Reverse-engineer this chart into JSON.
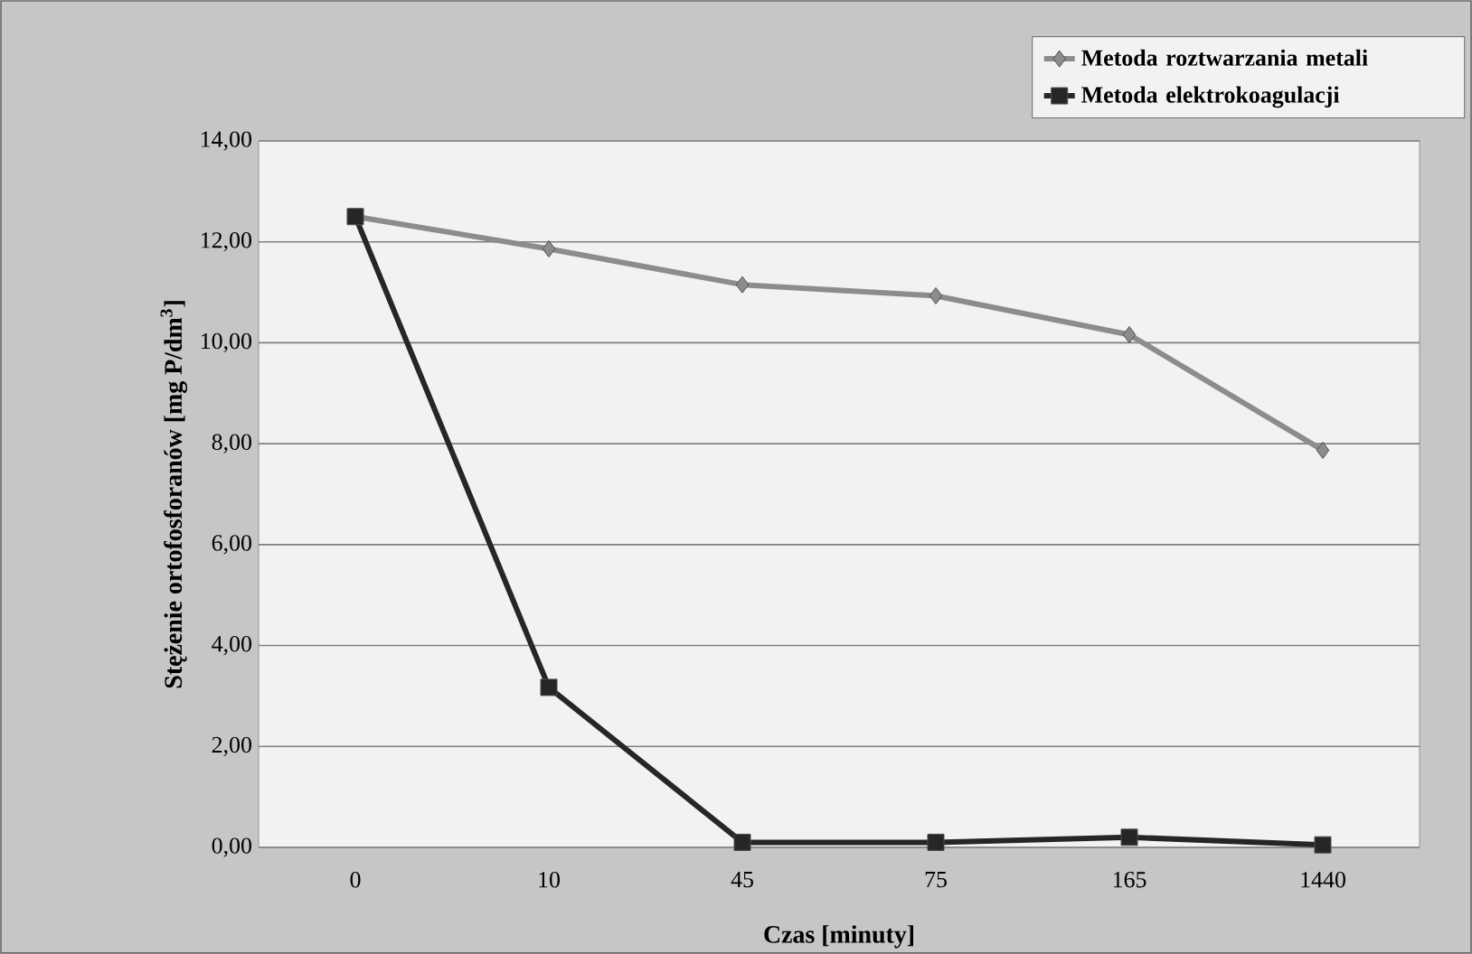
{
  "chart_data": {
    "type": "line",
    "xlabel": "Czas [minuty]",
    "ylabel": "Stężenie ortofosforanów [mg P/dm$^{3}$]",
    "categories": [
      "0",
      "10",
      "45",
      "75",
      "165",
      "1440"
    ],
    "series": [
      {
        "name": "Metoda roztwarzania metali",
        "color": "#8c8c8c",
        "marker": "diamond",
        "values": [
          12.5,
          11.86,
          11.15,
          10.93,
          10.16,
          7.87
        ]
      },
      {
        "name": "Metoda elektrokoagulacji",
        "color": "#262626",
        "marker": "square",
        "values": [
          12.5,
          3.17,
          0.1,
          0.1,
          0.2,
          0.05
        ]
      }
    ],
    "ylim": [
      0,
      14
    ],
    "yticks": [
      {
        "value": 0,
        "label": "0,00"
      },
      {
        "value": 2,
        "label": "2,00"
      },
      {
        "value": 4,
        "label": "4,00"
      },
      {
        "value": 6,
        "label": "6,00"
      },
      {
        "value": 8,
        "label": "8,00"
      },
      {
        "value": 10,
        "label": "10,00"
      },
      {
        "value": 12,
        "label": "12,00"
      },
      {
        "value": 14,
        "label": "14,00"
      }
    ],
    "grid": "y",
    "legend": "top right",
    "line_style": "solid"
  }
}
